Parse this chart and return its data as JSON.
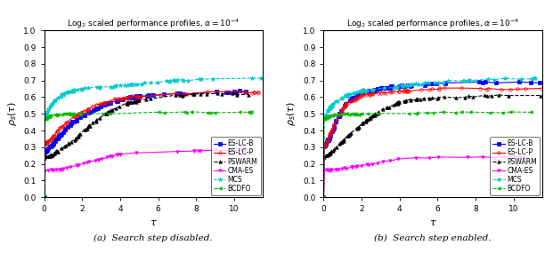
{
  "title": "Log$_2$ scaled performance profiles, $\\alpha = 10^{-4}$",
  "xlim": [
    0,
    11.5
  ],
  "ylim": [
    0,
    1.0
  ],
  "yticks": [
    0.0,
    0.1,
    0.2,
    0.3,
    0.4,
    0.5,
    0.6,
    0.7,
    0.8,
    0.9,
    1.0
  ],
  "xticks": [
    0,
    2,
    4,
    6,
    8,
    10
  ],
  "subtitle_a": "(a)  Search step disabled.",
  "subtitle_b": "(b)  Search step enabled.",
  "legend_entries": [
    "ES-LC-B",
    "ES-LC-P",
    "PSWARM",
    "CMA-ES",
    "MCS",
    "BCDFO"
  ],
  "colors": {
    "ES-LC-B": "#0000ff",
    "ES-LC-P": "#ff0000",
    "PSWARM": "#000000",
    "CMA-ES": "#ff00ff",
    "MCS": "#00cccc",
    "BCDFO": "#00bb00"
  },
  "markers": {
    "ES-LC-B": "s",
    "ES-LC-P": "o",
    "PSWARM": "^",
    "CMA-ES": "v",
    "MCS": "*",
    "BCDFO": "<"
  },
  "linestyles": {
    "ES-LC-B": "-",
    "ES-LC-P": "-",
    "PSWARM": "--",
    "CMA-ES": "-",
    "MCS": "--",
    "BCDFO": "--"
  },
  "markerfacecolor": {
    "ES-LC-B": "#0000ff",
    "ES-LC-P": "none",
    "PSWARM": "#000000",
    "CMA-ES": "#ff00ff",
    "MCS": "#00cccc",
    "BCDFO": "#00bb00"
  }
}
